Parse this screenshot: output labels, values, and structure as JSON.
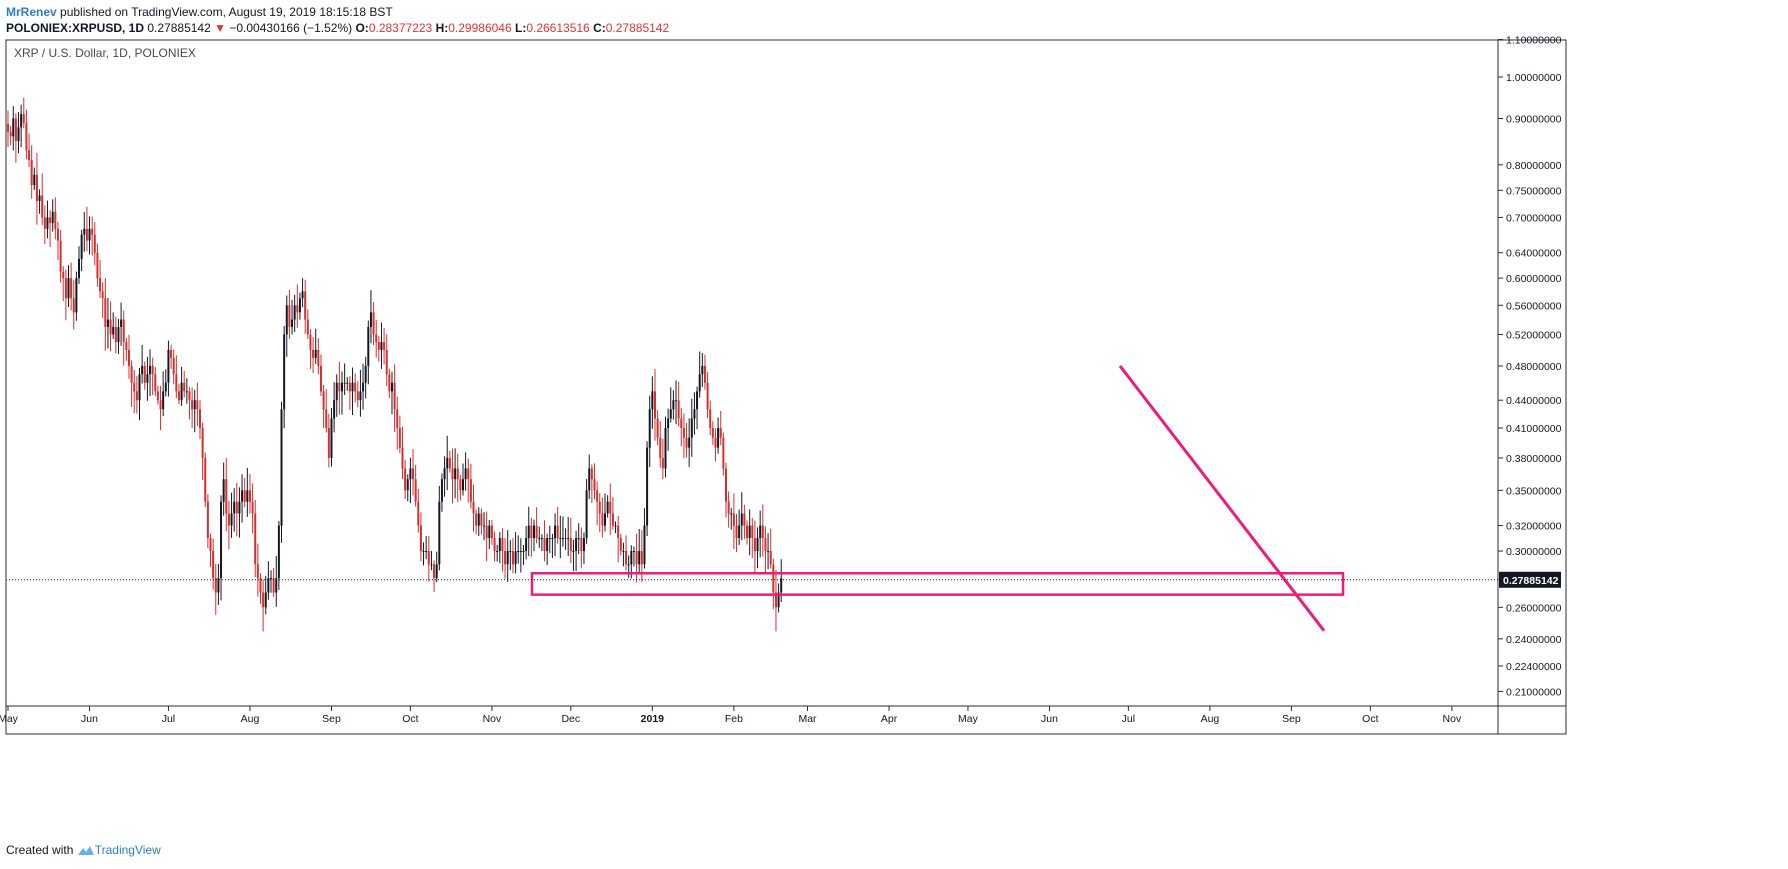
{
  "header": {
    "author": "MrRenev",
    "published_text": " published on TradingView.com, August 19, 2019 18:15:18 BST"
  },
  "ohlc": {
    "symbol": "POLONIEX:XRPUSD, 1D",
    "last": "0.27885142",
    "change_arrow": "▼",
    "change": "−0.00430166 (−1.52%)",
    "o_label": "O:",
    "o_value": "0.28377223",
    "h_label": "H:",
    "h_value": "0.29986046",
    "l_label": "L:",
    "l_value": "0.26613516",
    "c_label": "C:",
    "c_value": "0.27885142"
  },
  "footer": {
    "created_with": "Created with",
    "brand": "TradingView"
  },
  "colors": {
    "up": "#131722",
    "down": "#d32f2f",
    "annotation": "#e91e7a",
    "price_label_bg": "#131722"
  },
  "chart_data": {
    "type": "candlestick",
    "legend": "XRP / U.S. Dollar, 1D, POLONIEX",
    "y_scale": "log",
    "ylim": [
      0.2,
      1.1
    ],
    "y_ticks": [
      "1.10000000",
      "1.00000000",
      "0.90000000",
      "0.80000000",
      "0.75000000",
      "0.70000000",
      "0.64000000",
      "0.60000000",
      "0.56000000",
      "0.52000000",
      "0.48000000",
      "0.44000000",
      "0.41000000",
      "0.38000000",
      "0.35000000",
      "0.32000000",
      "0.30000000",
      "0.26000000",
      "0.24000000",
      "0.22400000",
      "0.21000000"
    ],
    "x_ticks": [
      "May",
      "Jun",
      "Jul",
      "Aug",
      "Sep",
      "Oct",
      "Nov",
      "Dec",
      "2019",
      "Feb",
      "Mar",
      "Apr",
      "May",
      "Jun",
      "Jul",
      "Aug",
      "Sep",
      "Oct",
      "Nov"
    ],
    "last_price": 0.27885142,
    "last_price_label": "0.27885142",
    "daily_closes": [
      0.87,
      0.86,
      0.9,
      0.85,
      0.88,
      0.91,
      0.89,
      0.83,
      0.81,
      0.76,
      0.78,
      0.73,
      0.74,
      0.7,
      0.68,
      0.7,
      0.69,
      0.71,
      0.68,
      0.66,
      0.61,
      0.6,
      0.57,
      0.6,
      0.57,
      0.55,
      0.6,
      0.63,
      0.67,
      0.68,
      0.66,
      0.68,
      0.67,
      0.64,
      0.6,
      0.58,
      0.57,
      0.53,
      0.54,
      0.52,
      0.53,
      0.51,
      0.53,
      0.54,
      0.51,
      0.5,
      0.48,
      0.46,
      0.45,
      0.44,
      0.47,
      0.48,
      0.46,
      0.47,
      0.48,
      0.47,
      0.45,
      0.44,
      0.43,
      0.45,
      0.46,
      0.5,
      0.49,
      0.47,
      0.45,
      0.44,
      0.46,
      0.45,
      0.45,
      0.44,
      0.43,
      0.44,
      0.43,
      0.41,
      0.38,
      0.34,
      0.31,
      0.3,
      0.28,
      0.27,
      0.28,
      0.34,
      0.36,
      0.33,
      0.32,
      0.33,
      0.34,
      0.33,
      0.34,
      0.35,
      0.34,
      0.35,
      0.34,
      0.33,
      0.29,
      0.28,
      0.27,
      0.26,
      0.27,
      0.28,
      0.28,
      0.27,
      0.28,
      0.32,
      0.43,
      0.52,
      0.56,
      0.53,
      0.54,
      0.56,
      0.55,
      0.57,
      0.58,
      0.54,
      0.52,
      0.5,
      0.49,
      0.5,
      0.48,
      0.45,
      0.43,
      0.41,
      0.38,
      0.42,
      0.44,
      0.46,
      0.45,
      0.46,
      0.46,
      0.46,
      0.45,
      0.46,
      0.45,
      0.44,
      0.45,
      0.46,
      0.48,
      0.53,
      0.55,
      0.52,
      0.51,
      0.5,
      0.51,
      0.5,
      0.47,
      0.45,
      0.46,
      0.43,
      0.41,
      0.39,
      0.37,
      0.35,
      0.36,
      0.37,
      0.36,
      0.34,
      0.32,
      0.3,
      0.3,
      0.3,
      0.29,
      0.29,
      0.28,
      0.29,
      0.34,
      0.36,
      0.37,
      0.38,
      0.37,
      0.36,
      0.37,
      0.36,
      0.35,
      0.36,
      0.37,
      0.36,
      0.34,
      0.33,
      0.32,
      0.33,
      0.32,
      0.32,
      0.31,
      0.32,
      0.31,
      0.3,
      0.3,
      0.31,
      0.3,
      0.29,
      0.3,
      0.3,
      0.29,
      0.3,
      0.3,
      0.3,
      0.3,
      0.31,
      0.32,
      0.31,
      0.32,
      0.31,
      0.31,
      0.31,
      0.3,
      0.31,
      0.31,
      0.31,
      0.32,
      0.31,
      0.31,
      0.31,
      0.31,
      0.31,
      0.3,
      0.3,
      0.31,
      0.31,
      0.3,
      0.31,
      0.35,
      0.37,
      0.36,
      0.35,
      0.34,
      0.33,
      0.32,
      0.33,
      0.34,
      0.33,
      0.32,
      0.32,
      0.31,
      0.3,
      0.3,
      0.29,
      0.29,
      0.3,
      0.3,
      0.29,
      0.3,
      0.29,
      0.32,
      0.39,
      0.43,
      0.45,
      0.42,
      0.4,
      0.38,
      0.37,
      0.41,
      0.42,
      0.43,
      0.44,
      0.44,
      0.42,
      0.41,
      0.4,
      0.39,
      0.4,
      0.42,
      0.43,
      0.45,
      0.47,
      0.48,
      0.46,
      0.43,
      0.41,
      0.4,
      0.39,
      0.41,
      0.4,
      0.37,
      0.34,
      0.33,
      0.33,
      0.32,
      0.31,
      0.32,
      0.33,
      0.32,
      0.31,
      0.32,
      0.31,
      0.3,
      0.31,
      0.32,
      0.31,
      0.3,
      0.3,
      0.29,
      0.27,
      0.26,
      0.27,
      0.28
    ],
    "annotations": [
      {
        "type": "rectangle",
        "label": "support-zone",
        "price_top": 0.2835,
        "price_bottom": 0.2685,
        "start": "Nov 15, 2018",
        "end": "Sep 18, 2019"
      },
      {
        "type": "trendline",
        "label": "descending-trendline",
        "start_price": 0.48,
        "end_price": 0.245,
        "start": "Jun 25, 2019",
        "end": "Sep 12, 2019"
      }
    ]
  }
}
